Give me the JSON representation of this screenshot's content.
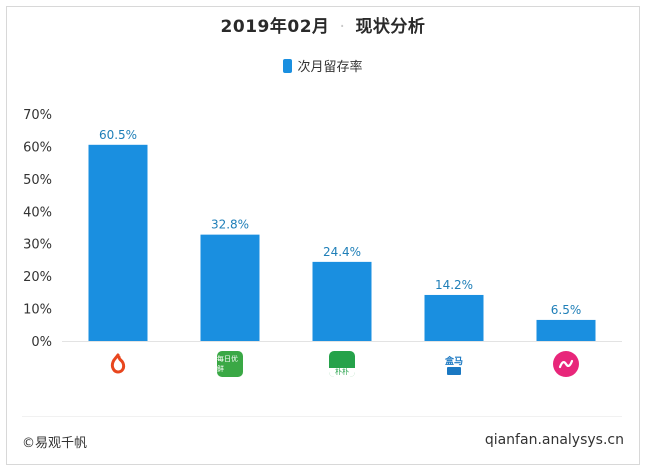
{
  "title": {
    "date": "2019年02月",
    "separator": "·",
    "name": "现状分析"
  },
  "legend": {
    "label": "次月留存率",
    "color": "#1a8fe0"
  },
  "chart_data": {
    "type": "bar",
    "title": "2019年02月 · 现状分析",
    "series": [
      {
        "name": "次月留存率",
        "values": [
          60.5,
          32.8,
          24.4,
          14.2,
          6.5
        ]
      }
    ],
    "categories": [
      "app-1",
      "app-2",
      "app-3",
      "app-4",
      "app-5"
    ],
    "data_labels": [
      "60.5%",
      "32.8%",
      "24.4%",
      "14.2%",
      "6.5%"
    ],
    "y_ticks": [
      "70%",
      "60%",
      "50%",
      "40%",
      "30%",
      "20%",
      "10%",
      "0%"
    ],
    "ylim": [
      0,
      70
    ],
    "bar_color": "#1a8fe0",
    "label_color": "#1f7fb8",
    "legend_position": "top-center",
    "grid": false
  },
  "app_icons": [
    {
      "name": "orange-drop-logo-icon",
      "text": "",
      "bg": "#ffffff",
      "fg": "#e8461e"
    },
    {
      "name": "green-square-logo-icon",
      "text": "每日优鲜",
      "bg": "#3aa845",
      "fg": "#ffffff"
    },
    {
      "name": "green-bird-logo-icon",
      "text": "朴朴",
      "bg": "#25a24a",
      "fg": "#ffffff"
    },
    {
      "name": "hema-logo-icon",
      "text": "盒马",
      "bg": "#ffffff",
      "fg": "#1a78c2"
    },
    {
      "name": "pink-circle-logo-icon",
      "text": "",
      "bg": "#e8267a",
      "fg": "#ffffff"
    }
  ],
  "footer": {
    "left": "©易观千帆",
    "right": "qianfan.analysys.cn"
  }
}
